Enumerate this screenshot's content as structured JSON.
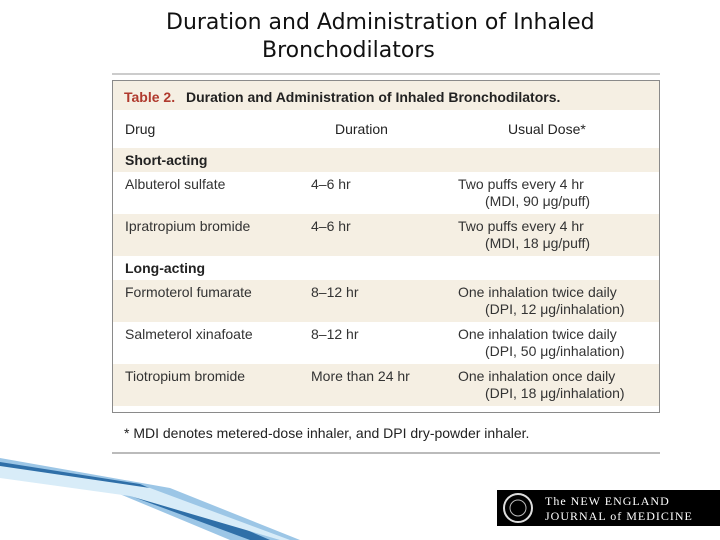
{
  "slide": {
    "title": [
      "Duration and Administration of Inhaled",
      "Bronchodilators"
    ]
  },
  "table": {
    "label": "Table 2.",
    "caption": "Duration and Administration of Inhaled Bronchodilators.",
    "columns": [
      "Drug",
      "Duration",
      "Usual Dose*"
    ],
    "groups": [
      {
        "name": "Short-acting",
        "rows": [
          [
            "Albuterol sulfate",
            "4–6 hr",
            [
              "Two puffs every 4 hr",
              "(MDI, 90 μg/puff)"
            ]
          ],
          [
            "Ipratropium bromide",
            "4–6 hr",
            [
              "Two puffs every 4 hr",
              "(MDI, 18 μg/puff)"
            ]
          ]
        ]
      },
      {
        "name": "Long-acting",
        "rows": [
          [
            "Formoterol fumarate",
            "8–12 hr",
            [
              "One inhalation twice daily",
              "(DPI, 12 μg/inhalation)"
            ]
          ],
          [
            "Salmeterol xinafoate",
            "8–12 hr",
            [
              "One inhalation twice daily",
              "(DPI, 50 μg/inhalation)"
            ]
          ],
          [
            "Tiotropium bromide",
            "More than 24 hr",
            [
              "One inhalation once daily",
              "(DPI, 18 μg/inhalation)"
            ]
          ]
        ]
      }
    ],
    "footnote": "* MDI denotes metered-dose inhaler, and DPI dry-powder inhaler."
  },
  "logo": {
    "lines": [
      "The NEW ENGLAND",
      "JOURNAL of MEDICINE"
    ]
  }
}
